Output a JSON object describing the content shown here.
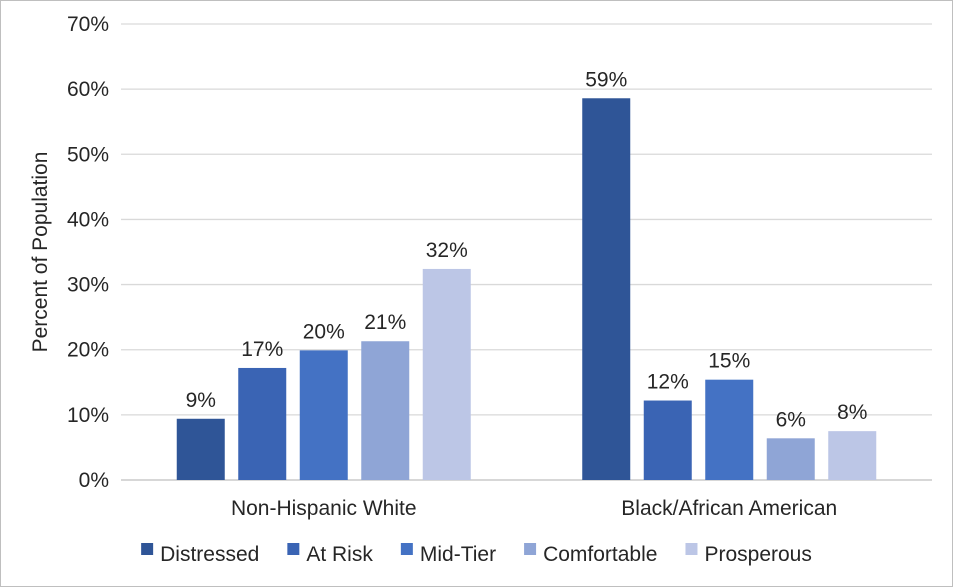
{
  "chart_data": {
    "type": "bar",
    "title": "",
    "xlabel": "",
    "ylabel": "Percent of Population",
    "ylim": [
      0,
      70
    ],
    "yticks": [
      "0%",
      "10%",
      "20%",
      "30%",
      "40%",
      "50%",
      "60%",
      "70%"
    ],
    "categories": [
      "Non-Hispanic White",
      "Black/African American"
    ],
    "grid": "horizontal",
    "legend_position": "bottom",
    "series": [
      {
        "name": "Distressed",
        "color": "#2f5597",
        "values": [
          9.4,
          58.6
        ],
        "labels": [
          "9%",
          "59%"
        ]
      },
      {
        "name": "At Risk",
        "color": "#3a64b4",
        "values": [
          17.2,
          12.2
        ],
        "labels": [
          "17%",
          "12%"
        ]
      },
      {
        "name": "Mid-Tier",
        "color": "#4472c4",
        "values": [
          19.9,
          15.4
        ],
        "labels": [
          "20%",
          "15%"
        ]
      },
      {
        "name": "Comfortable",
        "color": "#8fa5d6",
        "values": [
          21.3,
          6.4
        ],
        "labels": [
          "21%",
          "6%"
        ]
      },
      {
        "name": "Prosperous",
        "color": "#bcc6e6",
        "values": [
          32.4,
          7.5
        ],
        "labels": [
          "32%",
          "8%"
        ]
      }
    ]
  }
}
